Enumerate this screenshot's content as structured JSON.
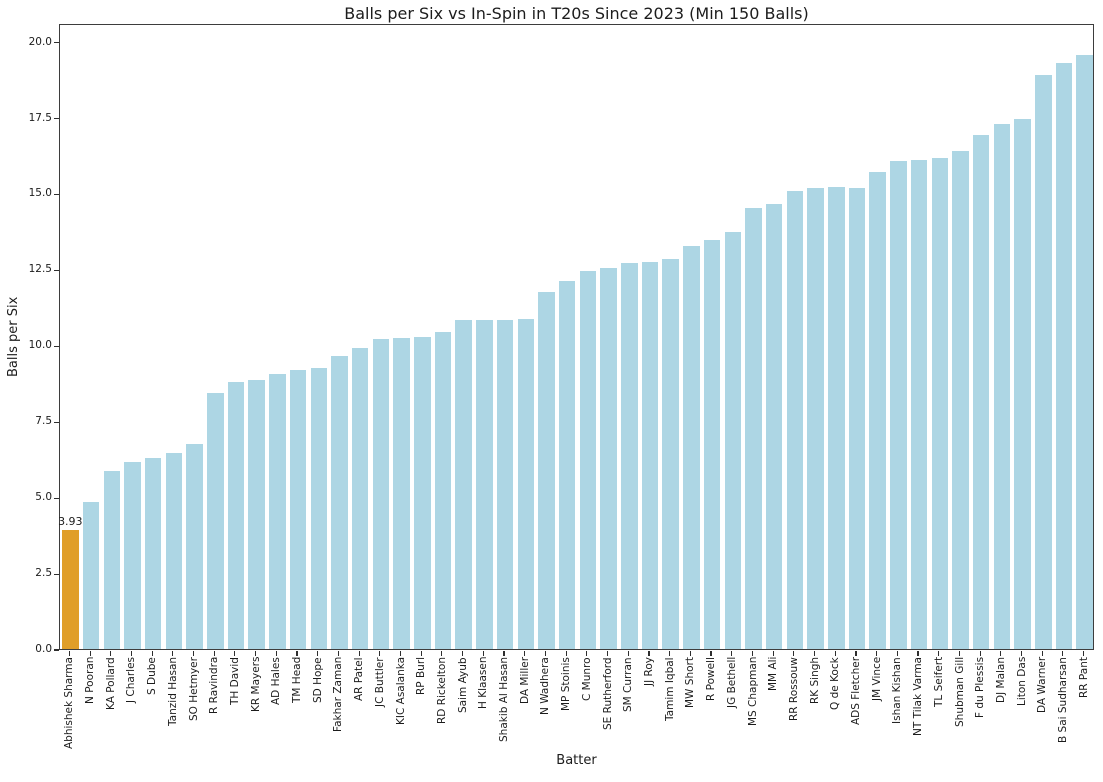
{
  "chart_data": {
    "type": "bar",
    "title": "Balls per Six vs In-Spin in T20s Since 2023 (Min 150 Balls)",
    "xlabel": "Batter",
    "ylabel": "Balls per Six",
    "ylim": [
      0,
      20.61
    ],
    "yticks": [
      0.0,
      2.5,
      5.0,
      7.5,
      10.0,
      12.5,
      15.0,
      17.5,
      20.0
    ],
    "grid": false,
    "legend": "none",
    "bar_color": "#ADD6E4",
    "highlight_color": "#E09E28",
    "highlight_index": 0,
    "annotations": [
      {
        "index": 0,
        "text": "3.93"
      }
    ],
    "categories": [
      "Abhishek Sharma",
      "N Pooran",
      "KA Pollard",
      "J Charles",
      "S Dube",
      "Tanzid Hasan",
      "SO Hetmyer",
      "R Ravindra",
      "TH David",
      "KR Mayers",
      "AD Hales",
      "TM Head",
      "SD Hope",
      "Fakhar Zaman",
      "AR Patel",
      "JC Buttler",
      "KIC Asalanka",
      "RP Burl",
      "RD Rickelton",
      "Saim Ayub",
      "H Klaasen",
      "Shakib Al Hasan",
      "DA Miller",
      "N Wadhera",
      "MP Stoinis",
      "C Munro",
      "SE Rutherford",
      "SM Curran",
      "JJ Roy",
      "Tamim Iqbal",
      "MW Short",
      "R Powell",
      "JG Bethell",
      "MS Chapman",
      "MM Ali",
      "RR Rossouw",
      "RK Singh",
      "Q de Kock",
      "ADS Fletcher",
      "JM Vince",
      "Ishan Kishan",
      "NT Tilak Varma",
      "TL Seifert",
      "Shubman Gill",
      "F du Plessis",
      "DJ Malan",
      "Liton Das",
      "DA Warner",
      "B Sai Sudharsan",
      "RR Pant"
    ],
    "values": [
      3.93,
      4.83,
      5.85,
      6.16,
      6.29,
      6.46,
      6.74,
      8.43,
      8.8,
      8.87,
      9.05,
      9.2,
      9.26,
      9.64,
      9.91,
      10.21,
      10.24,
      10.26,
      10.44,
      10.82,
      10.84,
      10.84,
      10.85,
      11.75,
      12.13,
      12.45,
      12.56,
      12.71,
      12.73,
      12.85,
      13.28,
      13.48,
      13.72,
      14.51,
      14.66,
      15.09,
      15.18,
      15.2,
      15.19,
      15.7,
      16.08,
      16.11,
      16.16,
      16.4,
      16.94,
      17.28,
      17.46,
      18.89,
      19.31,
      19.56
    ]
  }
}
